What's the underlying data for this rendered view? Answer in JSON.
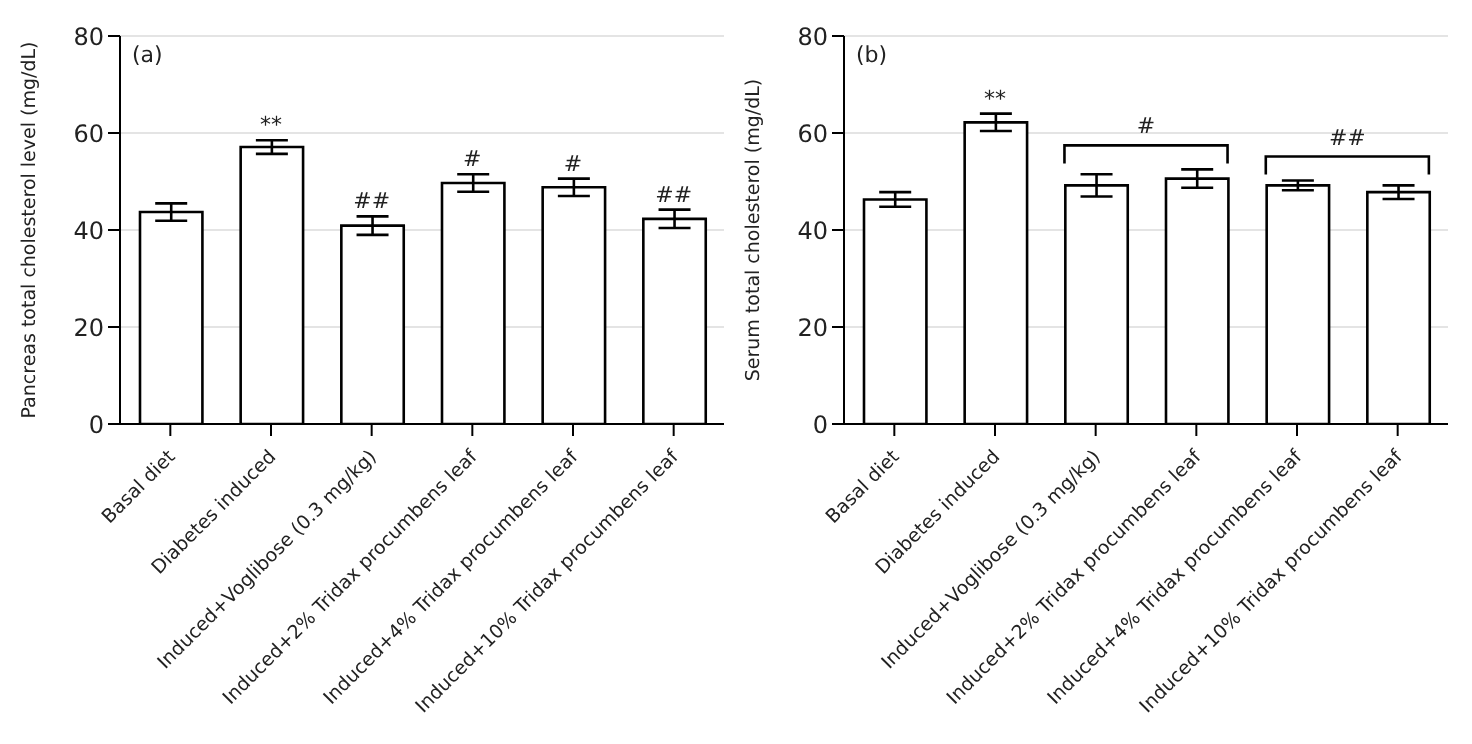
{
  "chart_data": [
    {
      "type": "bar",
      "ylabel": "Pancreas total cholesterol level (mg/dL)",
      "categories": [
        "Basal diet",
        "Diabetes induced",
        "Induced+Voglibose (0.3 mg/kg)",
        "Induced+2% Tridax procumbens leaf",
        "Induced+4% Tridax procumbens leaf",
        "Induced+10% Tridax procumbens leaf"
      ],
      "values": [
        43.7,
        57.1,
        40.9,
        49.7,
        48.8,
        42.3
      ],
      "errors": [
        1.8,
        1.4,
        1.9,
        1.8,
        1.8,
        1.9
      ],
      "color": "#ffffff",
      "ylim": [
        0,
        80
      ],
      "yticks": [
        0,
        20,
        40,
        60,
        80
      ],
      "grid": "y",
      "annotations": [
        "(a)",
        "**",
        "##",
        "#",
        "#",
        "##"
      ]
    },
    {
      "type": "bar",
      "ylabel": "Serum total cholesterol (mg/dL)",
      "categories": [
        "Basal diet",
        "Diabetes induced",
        "Induced+Voglibose (0.3 mg/kg)",
        "Induced+2% Tridax procumbens leaf",
        "Induced+4% Tridax procumbens leaf",
        "Induced+10% Tridax procumbens leaf"
      ],
      "values": [
        46.3,
        62.2,
        49.2,
        50.6,
        49.2,
        47.8
      ],
      "errors": [
        1.5,
        1.8,
        2.3,
        1.9,
        1.0,
        1.4
      ],
      "color": "#ffffff",
      "ylim": [
        0,
        80
      ],
      "yticks": [
        0,
        20,
        40,
        60,
        80
      ],
      "grid": "y",
      "annotations": [
        "(b)",
        "**",
        "#",
        "##"
      ]
    }
  ]
}
